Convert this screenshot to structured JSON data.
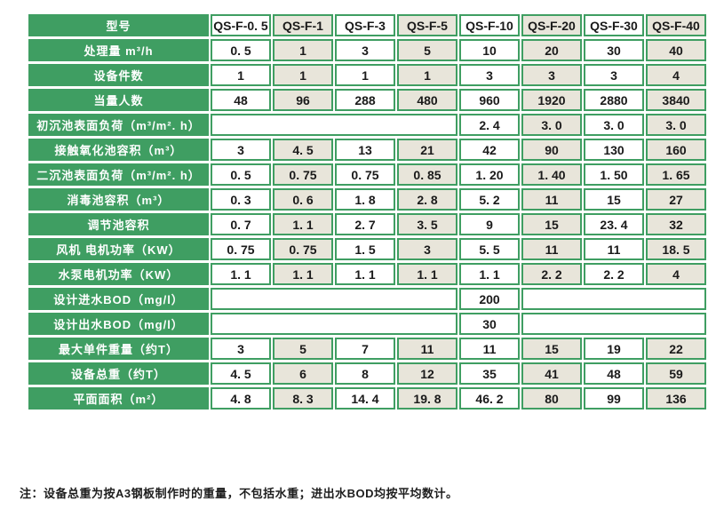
{
  "table": {
    "corner_label": "型号",
    "models": [
      "QS-F-0. 5",
      "QS-F-1",
      "QS-F-3",
      "QS-F-5",
      "QS-F-10",
      "QS-F-20",
      "QS-F-30",
      "QS-F-40"
    ],
    "rows": [
      {
        "label": "处理量 m³/h",
        "cells": [
          {
            "v": "0. 5"
          },
          {
            "v": "1"
          },
          {
            "v": "3"
          },
          {
            "v": "5"
          },
          {
            "v": "10"
          },
          {
            "v": "20"
          },
          {
            "v": "30"
          },
          {
            "v": "40"
          }
        ]
      },
      {
        "label": "设备件数",
        "cells": [
          {
            "v": "1"
          },
          {
            "v": "1"
          },
          {
            "v": "1"
          },
          {
            "v": "1"
          },
          {
            "v": "3"
          },
          {
            "v": "3"
          },
          {
            "v": "3"
          },
          {
            "v": "4"
          }
        ]
      },
      {
        "label": "当量人数",
        "cells": [
          {
            "v": "48"
          },
          {
            "v": "96"
          },
          {
            "v": "288"
          },
          {
            "v": "480"
          },
          {
            "v": "960"
          },
          {
            "v": "1920"
          },
          {
            "v": "2880"
          },
          {
            "v": "3840"
          }
        ]
      },
      {
        "label": "初沉池表面负荷（m³/m². h）",
        "cells": [
          {
            "v": "",
            "span": 4
          },
          {
            "v": "2. 4"
          },
          {
            "v": "3. 0"
          },
          {
            "v": "3. 0"
          },
          {
            "v": "3. 0"
          }
        ]
      },
      {
        "label": "接触氧化池容积（m³）",
        "cells": [
          {
            "v": "3"
          },
          {
            "v": "4. 5"
          },
          {
            "v": "13"
          },
          {
            "v": "21"
          },
          {
            "v": "42"
          },
          {
            "v": "90"
          },
          {
            "v": "130"
          },
          {
            "v": "160"
          }
        ]
      },
      {
        "label": "二沉池表面负荷（m³/m². h）",
        "cells": [
          {
            "v": "0. 5"
          },
          {
            "v": "0. 75"
          },
          {
            "v": "0. 75"
          },
          {
            "v": "0. 85"
          },
          {
            "v": "1. 20"
          },
          {
            "v": "1. 40"
          },
          {
            "v": "1. 50"
          },
          {
            "v": "1. 65"
          }
        ]
      },
      {
        "label": "消毒池容积（m³）",
        "cells": [
          {
            "v": "0. 3"
          },
          {
            "v": "0. 6"
          },
          {
            "v": "1. 8"
          },
          {
            "v": "2. 8"
          },
          {
            "v": "5. 2"
          },
          {
            "v": "11"
          },
          {
            "v": "15"
          },
          {
            "v": "27"
          }
        ]
      },
      {
        "label": "调节池容积",
        "cells": [
          {
            "v": "0. 7"
          },
          {
            "v": "1. 1"
          },
          {
            "v": "2. 7"
          },
          {
            "v": "3. 5"
          },
          {
            "v": "9"
          },
          {
            "v": "15"
          },
          {
            "v": "23. 4"
          },
          {
            "v": "32"
          }
        ]
      },
      {
        "label": "风机 电机功率（KW）",
        "cells": [
          {
            "v": "0. 75"
          },
          {
            "v": "0. 75"
          },
          {
            "v": "1. 5"
          },
          {
            "v": "3"
          },
          {
            "v": "5. 5"
          },
          {
            "v": "11"
          },
          {
            "v": "11"
          },
          {
            "v": "18. 5"
          }
        ]
      },
      {
        "label": "水泵电机功率（KW）",
        "cells": [
          {
            "v": "1. 1"
          },
          {
            "v": "1. 1"
          },
          {
            "v": "1. 1"
          },
          {
            "v": "1. 1"
          },
          {
            "v": "1. 1"
          },
          {
            "v": "2. 2"
          },
          {
            "v": "2. 2"
          },
          {
            "v": "4"
          }
        ]
      },
      {
        "label": "设计进水BOD（mg/l）",
        "cells": [
          {
            "v": "",
            "span": 4
          },
          {
            "v": "200"
          },
          {
            "v": "",
            "span": 3
          }
        ]
      },
      {
        "label": "设计出水BOD（mg/l）",
        "cells": [
          {
            "v": "",
            "span": 4
          },
          {
            "v": "30"
          },
          {
            "v": "",
            "span": 3
          }
        ]
      },
      {
        "label": "最大单件重量（约T）",
        "cells": [
          {
            "v": "3"
          },
          {
            "v": "5"
          },
          {
            "v": "7"
          },
          {
            "v": "11"
          },
          {
            "v": "11"
          },
          {
            "v": "15"
          },
          {
            "v": "19"
          },
          {
            "v": "22"
          }
        ]
      },
      {
        "label": "设备总重（约T）",
        "cells": [
          {
            "v": "4. 5"
          },
          {
            "v": "6"
          },
          {
            "v": "8"
          },
          {
            "v": "12"
          },
          {
            "v": "35"
          },
          {
            "v": "41"
          },
          {
            "v": "48"
          },
          {
            "v": "59"
          }
        ]
      },
      {
        "label": "平面面积（m²）",
        "cells": [
          {
            "v": "4. 8"
          },
          {
            "v": "8. 3"
          },
          {
            "v": "14. 4"
          },
          {
            "v": "19. 8"
          },
          {
            "v": "46. 2"
          },
          {
            "v": "80"
          },
          {
            "v": "99"
          },
          {
            "v": "136"
          }
        ]
      }
    ],
    "footnote": "注：设备总重为按A3钢板制作时的重量，不包括水重；进出水BOD均按平均数计。",
    "colors": {
      "green": "#3f9e62",
      "cell_beige": "#e8e5da",
      "cell_white": "#ffffff",
      "label_text": "#ffffff",
      "value_text": "#1a1a1a",
      "page_bg": "#ffffff"
    }
  }
}
